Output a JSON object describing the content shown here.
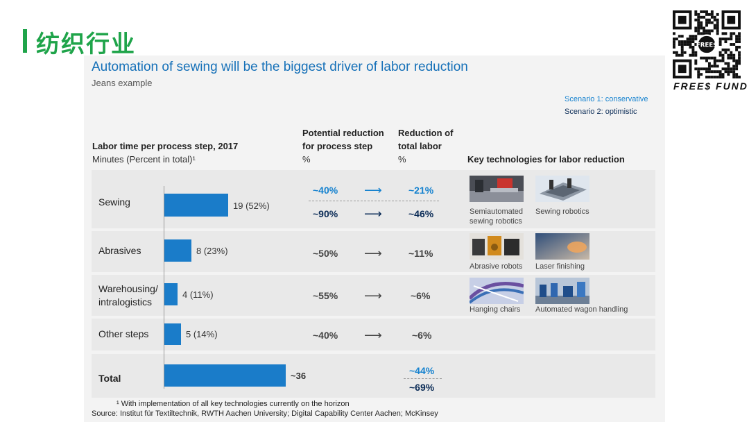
{
  "slide_title": "纺织行业",
  "brand": "FREE$ FUND",
  "qr_badge": "FREE$",
  "chart_data": {
    "type": "bar",
    "title": "Automation of sewing will be the biggest driver of labor reduction",
    "subtitle": "Jeans example",
    "scenarios": [
      "Scenario 1: conservative",
      "Scenario 2: optimistic"
    ],
    "headers": {
      "labor_title": "Labor time per process step, 2017",
      "labor_units": "Minutes (Percent in total)¹",
      "potential_line1": "Potential reduction",
      "potential_line2": "for process step",
      "potential_unit": "%",
      "total_line1": "Reduction of",
      "total_line2": "total labor",
      "total_unit": "%",
      "tech": "Key technologies for labor reduction"
    },
    "categories": [
      "Sewing",
      "Abrasives",
      "Warehousing/ intralogistics",
      "Other steps",
      "Total"
    ],
    "category_lines": [
      [
        "Sewing"
      ],
      [
        "Abrasives"
      ],
      [
        "Warehousing/",
        "intralogistics"
      ],
      [
        "Other steps"
      ],
      [
        "Total"
      ]
    ],
    "values": [
      19,
      8,
      4,
      5,
      36
    ],
    "xlim": [
      0,
      36
    ],
    "value_labels": [
      "19 (52%)",
      "8 (23%)",
      "4 (11%)",
      "5 (14%)",
      "~36"
    ],
    "potential_reduction": {
      "sewing": {
        "scenario1": "~40%",
        "scenario2": "~90%"
      },
      "abrasives": "~50%",
      "warehousing": "~55%",
      "other": "~40%"
    },
    "total_reduction": {
      "sewing": {
        "scenario1": "~21%",
        "scenario2": "~46%"
      },
      "abrasives": "~11%",
      "warehousing": "~6%",
      "other": "~6%",
      "total": {
        "scenario1": "~44%",
        "scenario2": "~69%"
      }
    },
    "technologies": {
      "sewing": [
        "Semiautomated sewing robotics",
        "Sewing robotics"
      ],
      "abrasives": [
        "Abrasive robots",
        "Laser finishing"
      ],
      "warehousing": [
        "Hanging chairs",
        "Automated wagon handling"
      ]
    },
    "tech_caption_lines": {
      "semi_l1": "Semiautomated",
      "semi_l2": "sewing robotics"
    },
    "footnote": "¹ With implementation of all key technologies currently on the horizon",
    "source": "Source: Institut für Textiltechnik, RWTH Aachen University; Digital Capability Center Aachen; McKinsey",
    "colors": {
      "bar": "#1a7cc9",
      "scenario1": "#1582cf",
      "scenario2": "#0b2c57",
      "title_green": "#1fa44a",
      "headline_blue": "#1570b8"
    }
  }
}
